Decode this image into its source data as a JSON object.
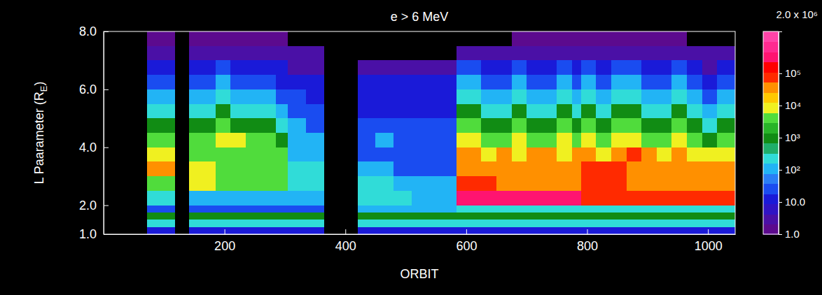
{
  "chart_data": {
    "type": "heatmap",
    "title": "e > 6 MeV",
    "x_label": "ORBIT",
    "y_label": "L Paarameter (RE)",
    "xlim": [
      0,
      1045
    ],
    "ylim": [
      1,
      8
    ],
    "xticks": [
      200,
      400,
      600,
      800,
      1000
    ],
    "yticks": [
      {
        "value": 1,
        "label": "1.0"
      },
      {
        "value": 2,
        "label": "2.0"
      },
      {
        "value": 4,
        "label": "4.0"
      },
      {
        "value": 6,
        "label": "6.0"
      },
      {
        "value": 8,
        "label": "8.0"
      }
    ],
    "x_edges": [
      72,
      90,
      105,
      118,
      141,
      160,
      185,
      210,
      235,
      260,
      285,
      305,
      335,
      365,
      421,
      450,
      480,
      510,
      540,
      565,
      584,
      600,
      625,
      650,
      675,
      700,
      725,
      750,
      775,
      790,
      815,
      840,
      865,
      890,
      915,
      940,
      965,
      990,
      1015,
      1045
    ],
    "y_edges": [
      1,
      1.25,
      1.5,
      1.75,
      2,
      2.5,
      3,
      3.5,
      4,
      4.5,
      5,
      5.5,
      6,
      6.5,
      7,
      7.5,
      8
    ],
    "z": [
      [
        10,
        10,
        10,
        null,
        10,
        10,
        10,
        10,
        10,
        10,
        10,
        10,
        10,
        null,
        10,
        10,
        10,
        10,
        10,
        10,
        10,
        10,
        10,
        10,
        10,
        10,
        10,
        10,
        10,
        10,
        10,
        10,
        10,
        10,
        10,
        10,
        10,
        10,
        10
      ],
      [
        300,
        300,
        300,
        null,
        300,
        300,
        300,
        300,
        300,
        300,
        300,
        300,
        300,
        null,
        300,
        300,
        300,
        300,
        300,
        300,
        300,
        300,
        300,
        300,
        300,
        300,
        300,
        300,
        300,
        300,
        300,
        300,
        300,
        300,
        300,
        300,
        300,
        300,
        300
      ],
      [
        1000,
        1000,
        1000,
        null,
        1000,
        1000,
        1000,
        1000,
        1000,
        1000,
        1000,
        1000,
        1000,
        null,
        1000,
        1000,
        1000,
        1000,
        1000,
        1000,
        1000,
        1000,
        1000,
        1000,
        1000,
        1000,
        1000,
        1000,
        1000,
        1000,
        1000,
        1000,
        1000,
        1000,
        1000,
        1000,
        1000,
        1000,
        1000
      ],
      [
        30,
        30,
        30,
        null,
        30,
        30,
        30,
        30,
        30,
        30,
        30,
        30,
        30,
        null,
        100,
        100,
        100,
        100,
        100,
        100,
        300,
        300,
        300,
        300,
        300,
        300,
        300,
        300,
        300,
        300,
        300,
        300,
        300,
        300,
        300,
        300,
        300,
        300,
        300
      ],
      [
        300,
        300,
        300,
        null,
        100,
        100,
        100,
        100,
        100,
        100,
        100,
        100,
        100,
        null,
        300,
        300,
        300,
        100,
        100,
        100,
        300000,
        300000,
        300000,
        300000,
        300000,
        300000,
        300000,
        300000,
        300000,
        100000,
        100000,
        100000,
        100000,
        100000,
        100000,
        100000,
        100000,
        100000,
        100000
      ],
      [
        3000,
        3000,
        3000,
        null,
        10000,
        10000,
        3000,
        3000,
        3000,
        3000,
        3000,
        300,
        300,
        null,
        300,
        300,
        100,
        100,
        100,
        100,
        100000,
        100000,
        100000,
        30000,
        30000,
        30000,
        30000,
        30000,
        30000,
        100000,
        100000,
        100000,
        30000,
        30000,
        30000,
        30000,
        30000,
        30000,
        30000
      ],
      [
        30000,
        30000,
        30000,
        null,
        10000,
        10000,
        3000,
        3000,
        3000,
        3000,
        3000,
        300,
        300,
        null,
        100,
        100,
        30,
        30,
        30,
        30,
        30000,
        30000,
        30000,
        30000,
        30000,
        30000,
        30000,
        30000,
        30000,
        100000,
        100000,
        100000,
        30000,
        30000,
        30000,
        30000,
        30000,
        30000,
        30000
      ],
      [
        10000,
        10000,
        10000,
        null,
        3000,
        3000,
        3000,
        3000,
        3000,
        3000,
        3000,
        100,
        100,
        null,
        30,
        30,
        30,
        30,
        30,
        30,
        30000,
        30000,
        10000,
        30000,
        10000,
        30000,
        30000,
        10000,
        30000,
        30000,
        10000,
        30000,
        100000,
        30000,
        10000,
        30000,
        10000,
        10000,
        10000
      ],
      [
        3000,
        3000,
        3000,
        null,
        3000,
        3000,
        10000,
        10000,
        3000,
        3000,
        1000,
        100,
        100,
        null,
        30,
        100,
        30,
        30,
        30,
        30,
        10000,
        10000,
        3000,
        3000,
        10000,
        3000,
        3000,
        10000,
        3000,
        10000,
        3000,
        10000,
        10000,
        3000,
        3000,
        10000,
        3000,
        1000,
        3000
      ],
      [
        1000,
        1000,
        1000,
        null,
        1000,
        1000,
        3000,
        1000,
        1000,
        1000,
        300,
        100,
        30,
        null,
        30,
        30,
        30,
        30,
        30,
        30,
        3000,
        3000,
        1000,
        1000,
        3000,
        1000,
        1000,
        3000,
        1000,
        3000,
        1000,
        3000,
        3000,
        1000,
        1000,
        3000,
        1000,
        300,
        1000
      ],
      [
        300,
        300,
        300,
        null,
        300,
        300,
        1000,
        300,
        300,
        300,
        100,
        30,
        30,
        null,
        10,
        10,
        10,
        10,
        10,
        10,
        1000,
        1000,
        300,
        300,
        1000,
        300,
        300,
        1000,
        300,
        1000,
        300,
        1000,
        1000,
        300,
        300,
        1000,
        300,
        100,
        300
      ],
      [
        100,
        100,
        100,
        null,
        100,
        100,
        300,
        100,
        100,
        100,
        30,
        30,
        10,
        null,
        10,
        10,
        10,
        10,
        10,
        10,
        300,
        300,
        100,
        100,
        300,
        100,
        100,
        300,
        100,
        300,
        100,
        300,
        300,
        100,
        100,
        300,
        100,
        30,
        100
      ],
      [
        30,
        30,
        30,
        null,
        30,
        30,
        100,
        30,
        30,
        30,
        10,
        10,
        10,
        null,
        10,
        10,
        10,
        10,
        10,
        10,
        100,
        100,
        30,
        30,
        100,
        30,
        30,
        100,
        30,
        100,
        30,
        100,
        100,
        30,
        30,
        100,
        30,
        10,
        30
      ],
      [
        10,
        10,
        10,
        null,
        10,
        10,
        30,
        10,
        10,
        10,
        10,
        3,
        3,
        null,
        3,
        3,
        3,
        3,
        3,
        3,
        30,
        30,
        10,
        10,
        30,
        10,
        10,
        30,
        10,
        30,
        10,
        30,
        30,
        10,
        10,
        30,
        10,
        3,
        10
      ],
      [
        3,
        3,
        3,
        null,
        3,
        3,
        3,
        3,
        3,
        3,
        3,
        3,
        3,
        null,
        null,
        null,
        null,
        null,
        null,
        null,
        3,
        3,
        3,
        3,
        3,
        3,
        3,
        3,
        3,
        3,
        3,
        3,
        3,
        3,
        3,
        3,
        3,
        3,
        3
      ],
      [
        1,
        1,
        1,
        null,
        1,
        1,
        1,
        1,
        1,
        1,
        1,
        null,
        null,
        null,
        null,
        null,
        null,
        null,
        null,
        null,
        null,
        null,
        null,
        null,
        1,
        1,
        1,
        1,
        1,
        1,
        1,
        1,
        1,
        1,
        1,
        1,
        null,
        null,
        null
      ]
    ],
    "colorbar": {
      "range": [
        1,
        2000000
      ],
      "log": true,
      "ticks": [
        {
          "value": 1,
          "label": "1.0"
        },
        {
          "value": 10,
          "label": "10.0"
        },
        {
          "value": 100,
          "label": "10²"
        },
        {
          "value": 1000,
          "label": "10³"
        },
        {
          "value": 10000,
          "label": "10⁴"
        },
        {
          "value": 100000,
          "label": "10⁵"
        },
        {
          "value": 2000000,
          "label": "2.0 x 10⁶"
        }
      ]
    }
  }
}
